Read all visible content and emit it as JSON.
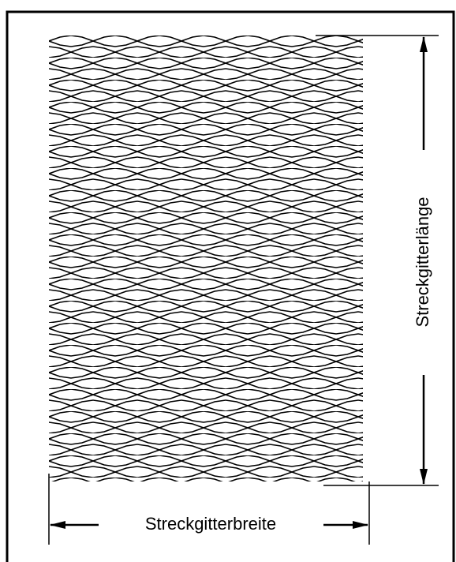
{
  "labels": {
    "length": "Streckgitterlänge",
    "width": "Streckgitterbreite"
  }
}
